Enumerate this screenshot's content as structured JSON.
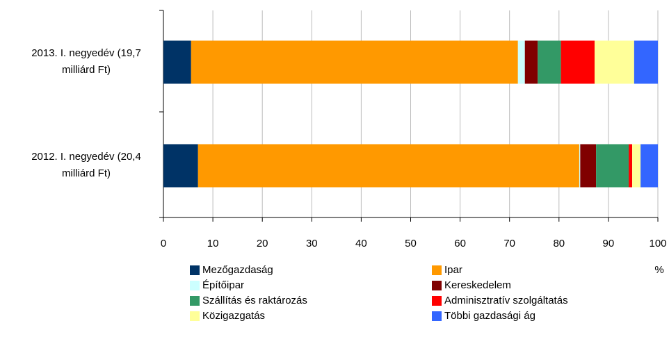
{
  "chart_data": {
    "type": "stacked_bar",
    "orientation": "horizontal",
    "categories": [
      "2013. I. negyedév (19,7 milliárd Ft)",
      "2012. I. negyedév (20,4 milliárd Ft)"
    ],
    "series": [
      {
        "name": "Mezőgazdaság",
        "color": "#003366",
        "values": [
          5.6,
          7.0
        ]
      },
      {
        "name": "Ipar",
        "color": "#FF9900",
        "values": [
          66.1,
          77.1
        ]
      },
      {
        "name": "Építőipar",
        "color": "#CCFFFF",
        "values": [
          1.4,
          0.2
        ]
      },
      {
        "name": "Kereskedelem",
        "color": "#800000",
        "values": [
          2.6,
          3.2
        ]
      },
      {
        "name": "Szállítás és raktározás",
        "color": "#339966",
        "values": [
          4.7,
          6.6
        ]
      },
      {
        "name": "Adminisztratív szolgáltatás",
        "color": "#FF0000",
        "values": [
          6.8,
          0.7
        ]
      },
      {
        "name": "Közigazgatás",
        "color": "#FFFF99",
        "values": [
          8.0,
          1.7
        ]
      },
      {
        "name": "Többi gazdasági ág",
        "color": "#3366FF",
        "values": [
          4.8,
          3.5
        ]
      }
    ],
    "xlabel": "%",
    "xlim": [
      0,
      100
    ],
    "xticks": [
      0,
      10,
      20,
      30,
      40,
      50,
      60,
      70,
      80,
      90,
      100
    ],
    "grid": true
  }
}
